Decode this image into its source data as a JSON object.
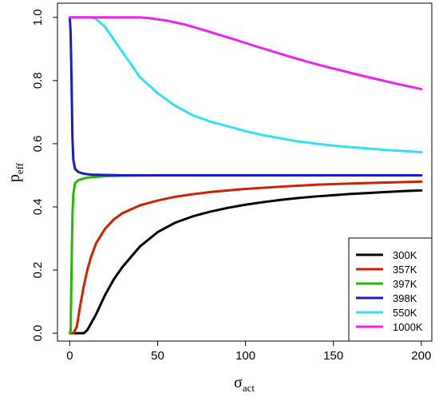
{
  "chart_data": {
    "type": "line",
    "xlabel": {
      "main": "σ",
      "sub": "act"
    },
    "ylabel": {
      "main": "p",
      "sub": "eff"
    },
    "xlim": [
      -7,
      206
    ],
    "ylim": [
      -0.025,
      1.045
    ],
    "x_ticks": [
      0,
      50,
      100,
      150,
      200
    ],
    "y_ticks": [
      0.0,
      0.2,
      0.4,
      0.6,
      0.8,
      1.0
    ],
    "x_tick_labels": [
      "0",
      "50",
      "100",
      "150",
      "200"
    ],
    "y_tick_labels": [
      "0.0",
      "0.2",
      "0.4",
      "0.6",
      "0.8",
      "1.0"
    ],
    "grid": false,
    "legend_position": "bottom-right",
    "series": [
      {
        "name": "300K",
        "color": "#000000",
        "points": [
          [
            0,
            0
          ],
          [
            8,
            0
          ],
          [
            10,
            0.01
          ],
          [
            12,
            0.03
          ],
          [
            15,
            0.06
          ],
          [
            20,
            0.12
          ],
          [
            25,
            0.17
          ],
          [
            30,
            0.21
          ],
          [
            40,
            0.275
          ],
          [
            50,
            0.32
          ],
          [
            60,
            0.35
          ],
          [
            70,
            0.37
          ],
          [
            80,
            0.385
          ],
          [
            90,
            0.397
          ],
          [
            100,
            0.407
          ],
          [
            110,
            0.415
          ],
          [
            120,
            0.422
          ],
          [
            130,
            0.428
          ],
          [
            140,
            0.433
          ],
          [
            150,
            0.437
          ],
          [
            160,
            0.441
          ],
          [
            170,
            0.444
          ],
          [
            180,
            0.447
          ],
          [
            190,
            0.45
          ],
          [
            200,
            0.452
          ]
        ]
      },
      {
        "name": "357K",
        "color": "#cc2200",
        "points": [
          [
            0,
            0
          ],
          [
            2,
            0
          ],
          [
            4,
            0.02
          ],
          [
            6,
            0.09
          ],
          [
            8,
            0.15
          ],
          [
            10,
            0.2
          ],
          [
            12,
            0.24
          ],
          [
            15,
            0.285
          ],
          [
            20,
            0.33
          ],
          [
            25,
            0.36
          ],
          [
            30,
            0.38
          ],
          [
            40,
            0.405
          ],
          [
            50,
            0.42
          ],
          [
            60,
            0.432
          ],
          [
            70,
            0.44
          ],
          [
            80,
            0.447
          ],
          [
            90,
            0.452
          ],
          [
            100,
            0.457
          ],
          [
            120,
            0.464
          ],
          [
            140,
            0.47
          ],
          [
            160,
            0.474
          ],
          [
            180,
            0.477
          ],
          [
            200,
            0.48
          ]
        ]
      },
      {
        "name": "397K",
        "color": "#22bb00",
        "points": [
          [
            0,
            0
          ],
          [
            0.5,
            0.01
          ],
          [
            1,
            0.2
          ],
          [
            1.5,
            0.37
          ],
          [
            2,
            0.44
          ],
          [
            3,
            0.475
          ],
          [
            5,
            0.485
          ],
          [
            8,
            0.49
          ],
          [
            12,
            0.494
          ],
          [
            20,
            0.497
          ],
          [
            30,
            0.499
          ],
          [
            50,
            0.5
          ],
          [
            200,
            0.5
          ]
        ]
      },
      {
        "name": "398K",
        "color": "#1a1acc",
        "points": [
          [
            0,
            1.0
          ],
          [
            0.5,
            0.95
          ],
          [
            1,
            0.8
          ],
          [
            1.5,
            0.62
          ],
          [
            2,
            0.55
          ],
          [
            3,
            0.52
          ],
          [
            5,
            0.51
          ],
          [
            8,
            0.505
          ],
          [
            12,
            0.502
          ],
          [
            20,
            0.501
          ],
          [
            30,
            0.5
          ],
          [
            200,
            0.5
          ]
        ]
      },
      {
        "name": "550K",
        "color": "#33e0f0",
        "points": [
          [
            0,
            1.0
          ],
          [
            12,
            1.0
          ],
          [
            15,
            0.995
          ],
          [
            20,
            0.97
          ],
          [
            25,
            0.93
          ],
          [
            30,
            0.89
          ],
          [
            35,
            0.85
          ],
          [
            40,
            0.81
          ],
          [
            50,
            0.76
          ],
          [
            60,
            0.72
          ],
          [
            70,
            0.69
          ],
          [
            80,
            0.67
          ],
          [
            90,
            0.655
          ],
          [
            100,
            0.64
          ],
          [
            110,
            0.627
          ],
          [
            120,
            0.617
          ],
          [
            130,
            0.607
          ],
          [
            140,
            0.6
          ],
          [
            150,
            0.594
          ],
          [
            160,
            0.589
          ],
          [
            170,
            0.585
          ],
          [
            180,
            0.58
          ],
          [
            190,
            0.577
          ],
          [
            200,
            0.573
          ]
        ]
      },
      {
        "name": "1000K",
        "color": "#ee22ee",
        "points": [
          [
            0,
            1.0
          ],
          [
            40,
            1.0
          ],
          [
            45,
            0.998
          ],
          [
            55,
            0.99
          ],
          [
            65,
            0.978
          ],
          [
            75,
            0.962
          ],
          [
            85,
            0.945
          ],
          [
            95,
            0.928
          ],
          [
            105,
            0.91
          ],
          [
            115,
            0.893
          ],
          [
            125,
            0.876
          ],
          [
            135,
            0.86
          ],
          [
            145,
            0.845
          ],
          [
            155,
            0.831
          ],
          [
            165,
            0.817
          ],
          [
            175,
            0.804
          ],
          [
            185,
            0.791
          ],
          [
            195,
            0.779
          ],
          [
            200,
            0.773
          ]
        ]
      }
    ]
  }
}
